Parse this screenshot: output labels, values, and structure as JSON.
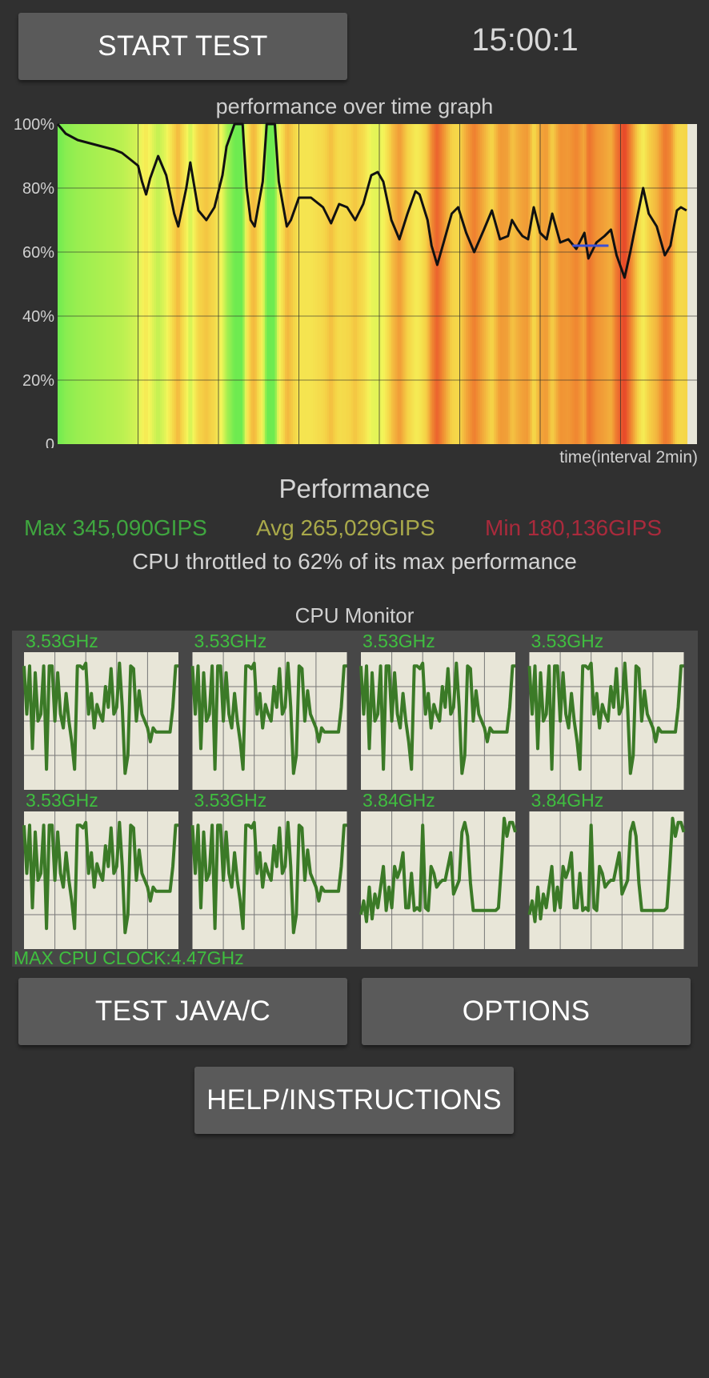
{
  "buttons": {
    "start_test": "START TEST",
    "test_java_c": "TEST JAVA/C",
    "options": "OPTIONS",
    "help": "HELP/INSTRUCTIONS"
  },
  "timer": "15:00:1",
  "performance": {
    "heading": "Performance",
    "max": "Max 345,090GIPS",
    "avg": "Avg 265,029GIPS",
    "min": "Min 180,136GIPS",
    "throttle_text": "CPU throttled to 62% of its max performance"
  },
  "cpu_monitor": {
    "title": "CPU Monitor",
    "max_clock": "MAX CPU CLOCK:4.47GHz",
    "cores": [
      {
        "freq": "3.53GHz",
        "pattern": "a"
      },
      {
        "freq": "3.53GHz",
        "pattern": "a"
      },
      {
        "freq": "3.53GHz",
        "pattern": "a"
      },
      {
        "freq": "3.53GHz",
        "pattern": "a"
      },
      {
        "freq": "3.53GHz",
        "pattern": "a"
      },
      {
        "freq": "3.53GHz",
        "pattern": "a"
      },
      {
        "freq": "3.84GHz",
        "pattern": "b"
      },
      {
        "freq": "3.84GHz",
        "pattern": "b"
      }
    ]
  },
  "colors": {
    "background": "#303030",
    "button": "#5a5a5a",
    "plot_bg": "#e8e6d8",
    "max": "#3fa63f",
    "avg": "#a9a94a",
    "min": "#a92a3c",
    "cpu_line": "#3b7a27"
  },
  "chart_data": {
    "type": "area",
    "title": "performance over time graph",
    "xlabel": "time(interval 2min)",
    "ylabel": "",
    "ylim": [
      0,
      100
    ],
    "y_ticks": [
      "0",
      "20%",
      "40%",
      "60%",
      "80%",
      "100%"
    ],
    "x_intervals": 8,
    "x_end": 7.45,
    "series": [
      {
        "values": [
          [
            0.0,
            100
          ],
          [
            0.1,
            97
          ],
          [
            0.25,
            95
          ],
          [
            0.4,
            94
          ],
          [
            0.55,
            93
          ],
          [
            0.7,
            92
          ],
          [
            0.8,
            91
          ],
          [
            0.9,
            89
          ],
          [
            1.0,
            87
          ],
          [
            1.05,
            82
          ],
          [
            1.1,
            78
          ],
          [
            1.15,
            83
          ],
          [
            1.25,
            90
          ],
          [
            1.35,
            84
          ],
          [
            1.45,
            72
          ],
          [
            1.5,
            68
          ],
          [
            1.6,
            80
          ],
          [
            1.65,
            88
          ],
          [
            1.75,
            73
          ],
          [
            1.85,
            70
          ],
          [
            1.95,
            74
          ],
          [
            2.05,
            84
          ],
          [
            2.1,
            93
          ],
          [
            2.2,
            100
          ],
          [
            2.3,
            100
          ],
          [
            2.35,
            80
          ],
          [
            2.4,
            70
          ],
          [
            2.45,
            68
          ],
          [
            2.55,
            82
          ],
          [
            2.6,
            100
          ],
          [
            2.7,
            100
          ],
          [
            2.75,
            82
          ],
          [
            2.85,
            68
          ],
          [
            2.9,
            70
          ],
          [
            3.0,
            77
          ],
          [
            3.15,
            77
          ],
          [
            3.3,
            74
          ],
          [
            3.4,
            69
          ],
          [
            3.5,
            75
          ],
          [
            3.6,
            74
          ],
          [
            3.7,
            70
          ],
          [
            3.8,
            75
          ],
          [
            3.9,
            84
          ],
          [
            3.98,
            85
          ],
          [
            4.05,
            82
          ],
          [
            4.15,
            70
          ],
          [
            4.25,
            64
          ],
          [
            4.35,
            72
          ],
          [
            4.45,
            79
          ],
          [
            4.5,
            78
          ],
          [
            4.6,
            70
          ],
          [
            4.65,
            62
          ],
          [
            4.72,
            56
          ],
          [
            4.8,
            63
          ],
          [
            4.9,
            72
          ],
          [
            4.98,
            74
          ],
          [
            5.08,
            66
          ],
          [
            5.18,
            60
          ],
          [
            5.3,
            67
          ],
          [
            5.4,
            73
          ],
          [
            5.5,
            64
          ],
          [
            5.6,
            65
          ],
          [
            5.65,
            70
          ],
          [
            5.72,
            67
          ],
          [
            5.78,
            65
          ],
          [
            5.85,
            64
          ],
          [
            5.92,
            74
          ],
          [
            6.0,
            66
          ],
          [
            6.08,
            64
          ],
          [
            6.15,
            72
          ],
          [
            6.25,
            63
          ],
          [
            6.35,
            64
          ],
          [
            6.45,
            61
          ],
          [
            6.55,
            66
          ],
          [
            6.6,
            58
          ],
          [
            6.7,
            63
          ],
          [
            6.8,
            65
          ],
          [
            6.88,
            67
          ],
          [
            6.95,
            59
          ],
          [
            7.05,
            52
          ],
          [
            7.12,
            60
          ],
          [
            7.2,
            70
          ],
          [
            7.28,
            80
          ],
          [
            7.35,
            72
          ],
          [
            7.45,
            68
          ],
          [
            7.55,
            59
          ],
          [
            7.62,
            62
          ],
          [
            7.7,
            73
          ],
          [
            7.75,
            74
          ],
          [
            7.82,
            73
          ]
        ]
      }
    ],
    "min_marker": {
      "x_start": 6.4,
      "x_end": 6.85,
      "y": 62
    }
  },
  "cpu_chart_data": {
    "type": "line",
    "ylim": [
      0,
      1
    ],
    "patterns": {
      "a": [
        0.9,
        0.55,
        0.9,
        0.3,
        0.85,
        0.5,
        0.55,
        0.9,
        0.15,
        0.9,
        0.9,
        0.5,
        0.85,
        0.55,
        0.45,
        0.7,
        0.5,
        0.35,
        0.15,
        0.9,
        0.9,
        0.88,
        0.92,
        0.55,
        0.7,
        0.45,
        0.62,
        0.55,
        0.5,
        0.75,
        0.6,
        0.88,
        0.55,
        0.6,
        0.92,
        0.6,
        0.12,
        0.25,
        0.9,
        0.88,
        0.5,
        0.72,
        0.55,
        0.5,
        0.45,
        0.35,
        0.45,
        0.42,
        0.42,
        0.42,
        0.42,
        0.42,
        0.42,
        0.6,
        0.9,
        0.9
      ],
      "b": [
        0.25,
        0.35,
        0.2,
        0.45,
        0.22,
        0.4,
        0.3,
        0.45,
        0.6,
        0.28,
        0.45,
        0.3,
        0.6,
        0.52,
        0.58,
        0.7,
        0.3,
        0.3,
        0.55,
        0.28,
        0.3,
        0.28,
        0.9,
        0.3,
        0.28,
        0.6,
        0.55,
        0.45,
        0.48,
        0.5,
        0.5,
        0.6,
        0.7,
        0.4,
        0.45,
        0.5,
        0.85,
        0.92,
        0.82,
        0.48,
        0.28,
        0.28,
        0.28,
        0.28,
        0.28,
        0.28,
        0.28,
        0.28,
        0.28,
        0.3,
        0.6,
        0.95,
        0.82,
        0.92,
        0.92,
        0.85
      ]
    }
  }
}
